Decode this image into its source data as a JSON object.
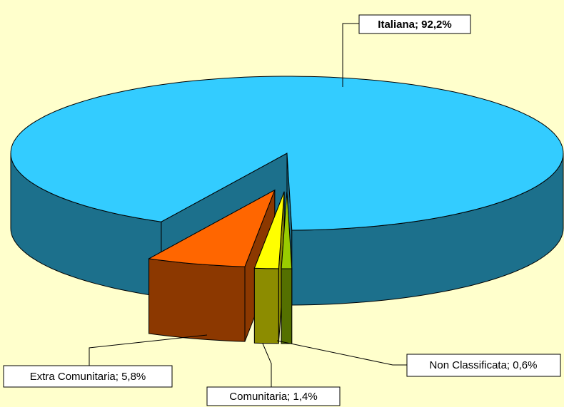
{
  "chart_data": {
    "type": "pie",
    "values": [
      92.2,
      5.8,
      1.4,
      0.6
    ],
    "value_labels": [
      "Italiana; 92,2%",
      "Extra Comunitaria; 5,8%",
      "Comunitaria; 1,4%",
      "Non Classificata; 0,6%"
    ],
    "colors": [
      "#33ccff",
      "#ff6600",
      "#ffff00",
      "#99cc00"
    ],
    "three_d": true
  }
}
